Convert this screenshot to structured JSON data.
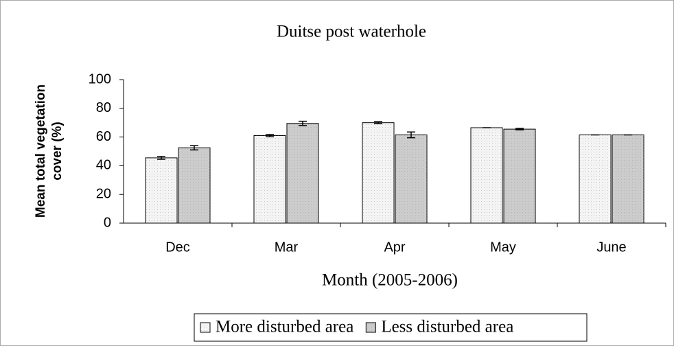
{
  "chart_data": {
    "type": "bar",
    "title": "Duitse post waterhole",
    "xlabel": "Month (2005-2006)",
    "ylabel": [
      "Mean total vegetation",
      "cover (%)"
    ],
    "categories": [
      "Dec",
      "Mar",
      "Apr",
      "May",
      "June"
    ],
    "series": [
      {
        "name": "More disturbed area",
        "color": "#f4f4f4",
        "values": [
          45.5,
          61,
          70,
          66.5,
          61.5
        ],
        "errors": [
          1,
          0.8,
          0.7,
          0,
          0
        ]
      },
      {
        "name": "Less disturbed area",
        "color": "#cccccc",
        "values": [
          52.5,
          69.5,
          61.5,
          65.5,
          61.5
        ],
        "errors": [
          1.5,
          1.5,
          2,
          0.5,
          0
        ]
      }
    ],
    "ylim": [
      0,
      100
    ],
    "yticks": [
      0,
      20,
      40,
      60,
      80,
      100
    ],
    "grid": false,
    "legend": "bottom"
  }
}
